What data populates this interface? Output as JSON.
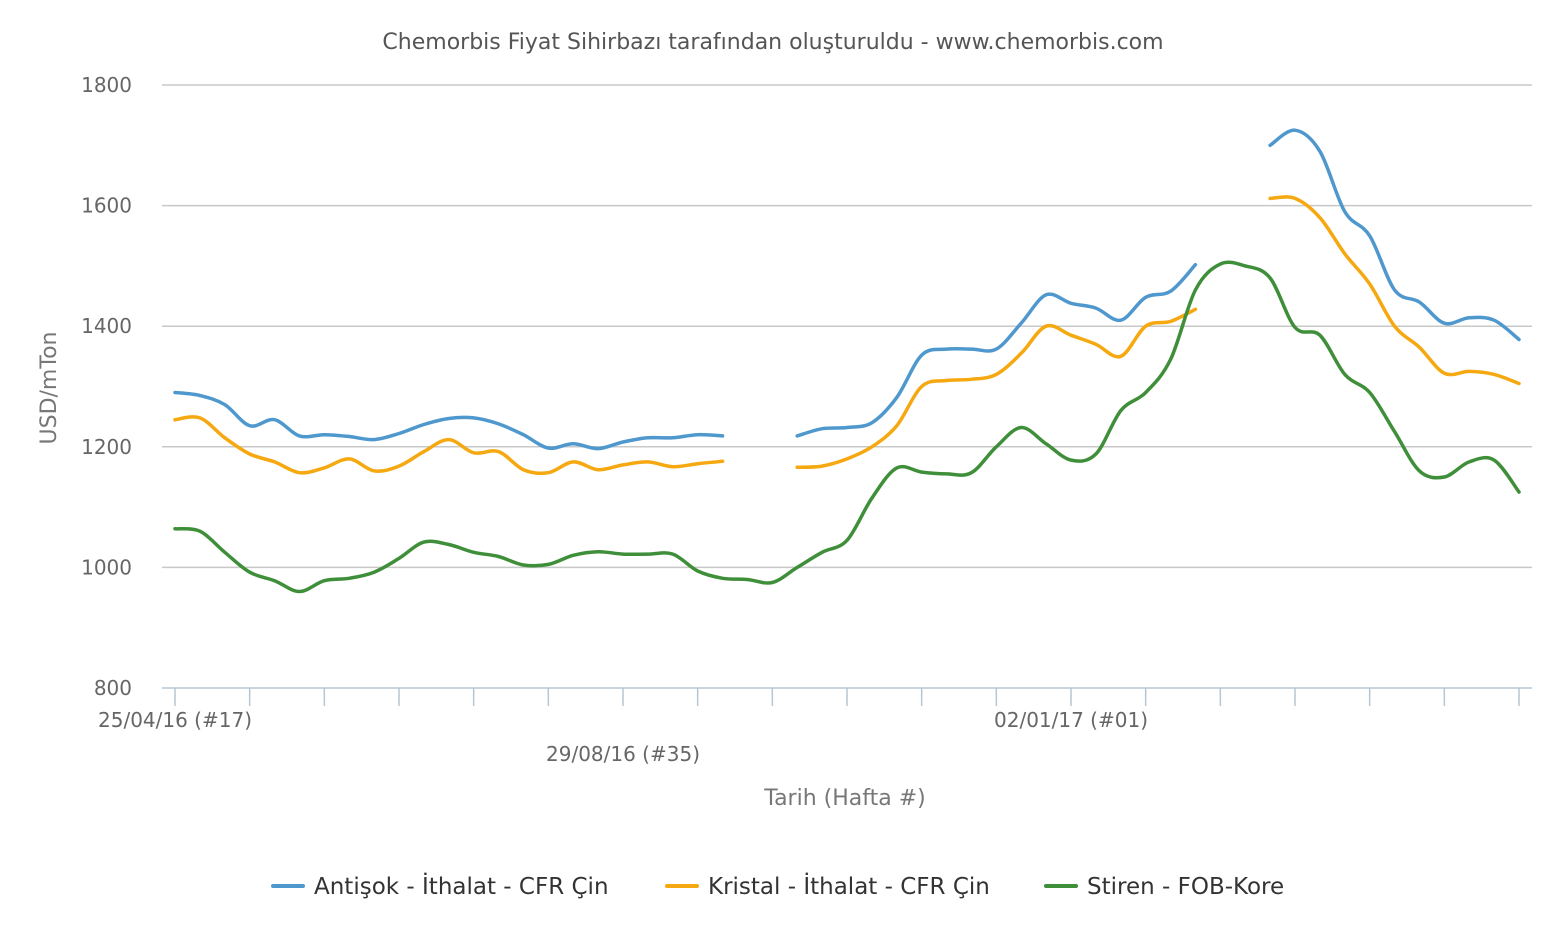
{
  "chart_data": {
    "type": "line",
    "title": "Chemorbis Fiyat Sihirbazı tarafından oluşturuldu - www.chemorbis.com",
    "xlabel": "Tarih (Hafta #)",
    "ylabel": "USD/mTon",
    "ylim": [
      800,
      1800
    ],
    "yticks": [
      "800",
      "1000",
      "1200",
      "1400",
      "1600",
      "1800"
    ],
    "xlim": [
      0,
      54
    ],
    "x_tick_positions": [
      0,
      3,
      6,
      9,
      12,
      15,
      18,
      21,
      24,
      27,
      30,
      33,
      36,
      39,
      42,
      45,
      48,
      51,
      54
    ],
    "x_tick_labels": [
      {
        "x": 0,
        "label": "25/04/16 (#17)",
        "row": 0
      },
      {
        "x": 18,
        "label": "29/08/16 (#35)",
        "row": 1
      },
      {
        "x": 36,
        "label": "02/01/17 (#01)",
        "row": 0
      }
    ],
    "grid": true,
    "legend_position": "bottom",
    "series": [
      {
        "name": "Antişok - İthalat - CFR Çin",
        "color": "#4f98cd",
        "values": [
          1290,
          1285,
          1270,
          1235,
          1245,
          1218,
          1220,
          1217,
          1212,
          1222,
          1237,
          1247,
          1248,
          1238,
          1220,
          1198,
          1205,
          1197,
          1208,
          1215,
          1215,
          1220,
          1218,
          null,
          null,
          1218,
          1230,
          1232,
          1240,
          1282,
          1352,
          1362,
          1362,
          1362,
          1405,
          1452,
          1438,
          1430,
          1410,
          1448,
          1458,
          1502,
          null,
          null,
          1700,
          1725,
          1690,
          1590,
          1550,
          1460,
          1440,
          1405,
          1414,
          1410,
          1378
        ]
      },
      {
        "name": "Kristal - İthalat - CFR Çin",
        "color": "#f5a80f",
        "values": [
          1245,
          1248,
          1215,
          1188,
          1175,
          1157,
          1165,
          1180,
          1160,
          1168,
          1192,
          1212,
          1190,
          1192,
          1162,
          1157,
          1175,
          1162,
          1170,
          1175,
          1167,
          1172,
          1176,
          null,
          null,
          1166,
          1168,
          1180,
          1200,
          1235,
          1300,
          1310,
          1312,
          1320,
          1355,
          1400,
          1385,
          1370,
          1350,
          1400,
          1408,
          1428,
          null,
          null,
          1612,
          1612,
          1580,
          1520,
          1470,
          1400,
          1365,
          1322,
          1325,
          1320,
          1305
        ]
      },
      {
        "name": "Stiren - FOB-Kore",
        "color": "#3f8f3a",
        "values": [
          1064,
          1060,
          1025,
          992,
          978,
          960,
          978,
          982,
          992,
          1015,
          1042,
          1038,
          1025,
          1018,
          1004,
          1005,
          1020,
          1026,
          1022,
          1022,
          1022,
          994,
          982,
          980,
          975,
          1000,
          1025,
          1045,
          1115,
          1165,
          1158,
          1155,
          1157,
          1200,
          1232,
          1205,
          1178,
          1188,
          1260,
          1290,
          1345,
          1460,
          1503,
          1500,
          1480,
          1398,
          1385,
          1320,
          1290,
          1225,
          1160,
          1150,
          1175,
          1178,
          1125
        ]
      }
    ]
  }
}
